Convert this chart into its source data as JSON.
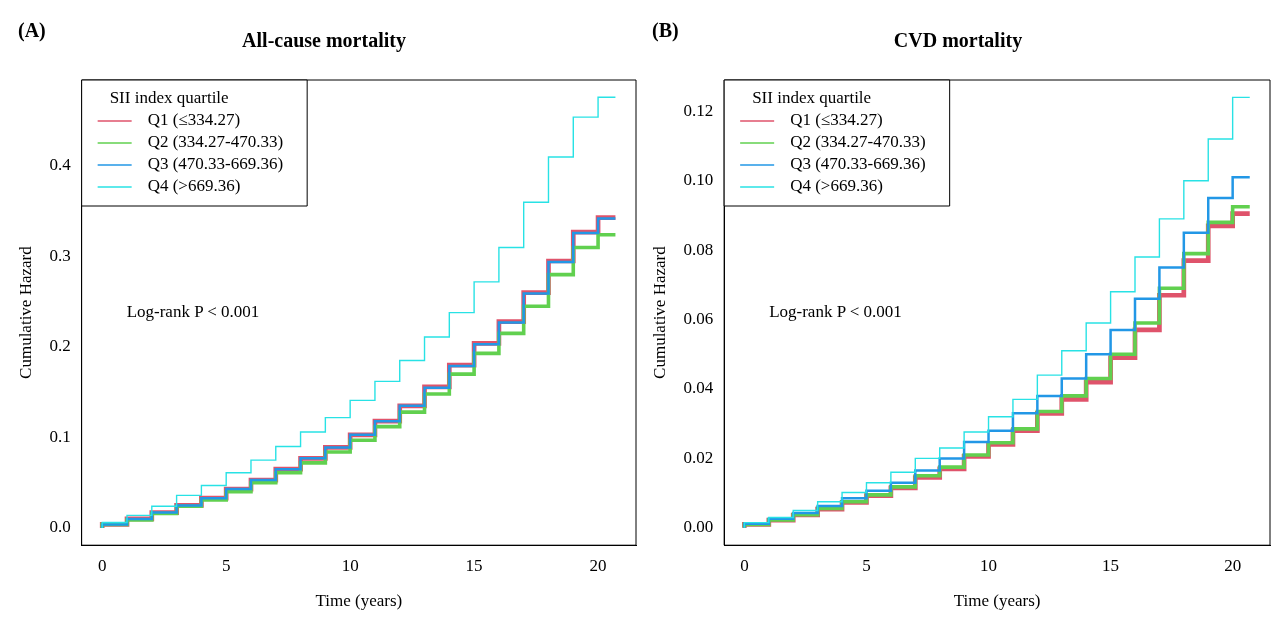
{
  "chart_data": [
    {
      "type": "step",
      "title": "All-cause mortality",
      "xlabel": "Time (years)",
      "ylabel": "Cumulative Hazard",
      "legend_title": "SII index quartile",
      "legend": "top left",
      "grid": false,
      "annotations": [
        "(A)",
        "Log-rank P < 0.001"
      ],
      "x": [
        0,
        1,
        2,
        3,
        4,
        5,
        6,
        7,
        8,
        9,
        10,
        11,
        12,
        13,
        14,
        15,
        16,
        17,
        18,
        19,
        20,
        20.7
      ],
      "xlim": [
        -0.83,
        21.53
      ],
      "xticks": [
        0,
        5,
        10,
        15,
        20
      ],
      "ylim": [
        -0.019,
        0.495
      ],
      "yticks": [
        {
          "value": 0,
          "label": "0.0"
        },
        {
          "value": 0.1,
          "label": "0.1"
        },
        {
          "value": 0.2,
          "label": "0.2"
        },
        {
          "value": 0.3,
          "label": "0.3"
        },
        {
          "value": 0.4,
          "label": "0.4"
        }
      ],
      "series": [
        {
          "name": "Q1 (≤334.27)",
          "color": "#df536b",
          "values": [
            0,
            0.004,
            0.01,
            0.017,
            0.025,
            0.033,
            0.043,
            0.053,
            0.065,
            0.077,
            0.089,
            0.103,
            0.118,
            0.135,
            0.156,
            0.18,
            0.204,
            0.228,
            0.26,
            0.295,
            0.327,
            0.343
          ]
        },
        {
          "name": "Q2 (334.27-470.33)",
          "color": "#61d04f",
          "values": [
            0,
            0.004,
            0.009,
            0.016,
            0.024,
            0.031,
            0.04,
            0.05,
            0.061,
            0.072,
            0.084,
            0.097,
            0.112,
            0.128,
            0.148,
            0.17,
            0.193,
            0.215,
            0.245,
            0.28,
            0.31,
            0.324
          ]
        },
        {
          "name": "Q3 (470.33-669.36)",
          "color": "#2297e6",
          "values": [
            0,
            0.004,
            0.01,
            0.017,
            0.025,
            0.033,
            0.043,
            0.053,
            0.065,
            0.077,
            0.089,
            0.103,
            0.118,
            0.135,
            0.155,
            0.179,
            0.203,
            0.227,
            0.259,
            0.294,
            0.326,
            0.342
          ]
        },
        {
          "name": "Q4 (>669.36)",
          "color": "#28e2e5",
          "values": [
            0,
            0.006,
            0.014,
            0.024,
            0.036,
            0.047,
            0.061,
            0.075,
            0.09,
            0.106,
            0.122,
            0.141,
            0.162,
            0.185,
            0.211,
            0.238,
            0.272,
            0.31,
            0.36,
            0.41,
            0.454,
            0.476
          ]
        }
      ]
    },
    {
      "type": "step",
      "title": "CVD mortality",
      "xlabel": "Time (years)",
      "ylabel": "Cumulative Hazard",
      "legend_title": "SII index quartile",
      "legend": "top left",
      "grid": false,
      "annotations": [
        "(B)",
        "Log-rank P < 0.001"
      ],
      "x": [
        0,
        1,
        2,
        3,
        4,
        5,
        6,
        7,
        8,
        9,
        10,
        11,
        12,
        13,
        14,
        15,
        16,
        17,
        18,
        19,
        20,
        20.7
      ],
      "xlim": [
        -0.83,
        21.53
      ],
      "xticks": [
        0,
        5,
        10,
        15,
        20
      ],
      "ylim": [
        -0.005,
        0.129
      ],
      "yticks": [
        {
          "value": 0,
          "label": "0.00"
        },
        {
          "value": 0.02,
          "label": "0.02"
        },
        {
          "value": 0.04,
          "label": "0.04"
        },
        {
          "value": 0.06,
          "label": "0.06"
        },
        {
          "value": 0.08,
          "label": "0.08"
        },
        {
          "value": 0.1,
          "label": "0.10"
        },
        {
          "value": 0.12,
          "label": "0.12"
        }
      ],
      "series": [
        {
          "name": "Q1 (≤334.27)",
          "color": "#df536b",
          "values": [
            0,
            0.001,
            0.0022,
            0.0037,
            0.0054,
            0.0073,
            0.0093,
            0.0115,
            0.0145,
            0.017,
            0.0206,
            0.024,
            0.028,
            0.033,
            0.037,
            0.042,
            0.049,
            0.057,
            0.067,
            0.077,
            0.087,
            0.0905
          ]
        },
        {
          "name": "Q2 (334.27-470.33)",
          "color": "#61d04f",
          "values": [
            0,
            0.001,
            0.0023,
            0.0038,
            0.0056,
            0.0075,
            0.0095,
            0.0118,
            0.015,
            0.0175,
            0.021,
            0.0245,
            0.0285,
            0.0335,
            0.038,
            0.043,
            0.05,
            0.059,
            0.069,
            0.079,
            0.088,
            0.0925
          ]
        },
        {
          "name": "Q3 (470.33-669.36)",
          "color": "#2297e6",
          "values": [
            0,
            0.0012,
            0.0026,
            0.0043,
            0.0063,
            0.0085,
            0.0107,
            0.013,
            0.0165,
            0.02,
            0.0247,
            0.028,
            0.033,
            0.038,
            0.043,
            0.05,
            0.057,
            0.066,
            0.075,
            0.085,
            0.095,
            0.101
          ]
        },
        {
          "name": "Q4 (>669.36)",
          "color": "#28e2e5",
          "values": [
            0,
            0.0015,
            0.003,
            0.005,
            0.0075,
            0.0102,
            0.013,
            0.016,
            0.02,
            0.023,
            0.0276,
            0.032,
            0.037,
            0.044,
            0.051,
            0.059,
            0.068,
            0.078,
            0.089,
            0.1,
            0.112,
            0.124
          ]
        }
      ]
    }
  ]
}
